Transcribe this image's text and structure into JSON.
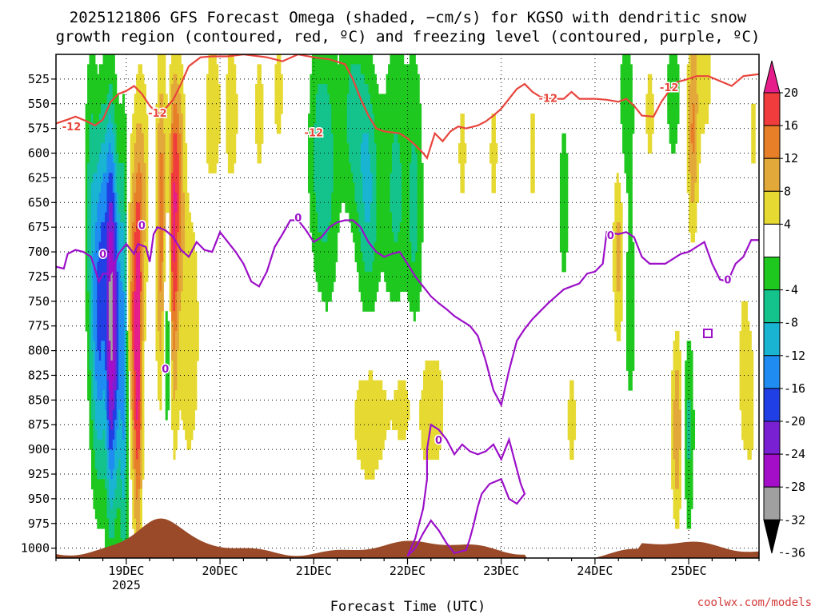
{
  "chart_data": {
    "type": "heatmap",
    "title_line1": "2025121806 GFS Forecast Omega (shaded, −cm/s) for KGSO with dendritic snow",
    "title_line2": "growth region (contoured, red, ºC) and freezing level (contoured, purple, ºC)",
    "xlabel": "Forecast Time (UTC)",
    "credit": "coolwx.com/models",
    "x_axis": {
      "unit": "hours since 2025-12-18 06Z",
      "range": [
        0,
        180
      ],
      "ticks": [
        {
          "label": "19DEC",
          "sub": "2025",
          "hour": 18
        },
        {
          "label": "20DEC",
          "hour": 42
        },
        {
          "label": "21DEC",
          "hour": 66
        },
        {
          "label": "22DEC",
          "hour": 90
        },
        {
          "label": "23DEC",
          "hour": 114
        },
        {
          "label": "24DEC",
          "hour": 138
        },
        {
          "label": "25DEC",
          "hour": 162
        }
      ]
    },
    "y_axis": {
      "unit": "hPa",
      "range": [
        500,
        1010
      ],
      "ticks": [
        525,
        550,
        575,
        600,
        625,
        650,
        675,
        700,
        725,
        750,
        775,
        800,
        825,
        850,
        875,
        900,
        925,
        950,
        975,
        1000
      ]
    },
    "colorbar": {
      "levels": [
        "20",
        "16",
        "12",
        "8",
        "4",
        "-4",
        "-8",
        "-12",
        "-16",
        "-20",
        "-24",
        "-28",
        "-32",
        "-36"
      ],
      "bins": [
        {
          "range": [
            16,
            20
          ],
          "color": "#f03c3c"
        },
        {
          "range": [
            12,
            16
          ],
          "color": "#e67f28"
        },
        {
          "range": [
            8,
            12
          ],
          "color": "#e3a83a"
        },
        {
          "range": [
            4,
            8
          ],
          "color": "#e6d932"
        },
        {
          "range": [
            -4,
            4
          ],
          "color": "#ffffff"
        },
        {
          "range": [
            -8,
            -4
          ],
          "color": "#1ec81e"
        },
        {
          "range": [
            -12,
            -8
          ],
          "color": "#14c38c"
        },
        {
          "range": [
            -16,
            -12
          ],
          "color": "#19b4d2"
        },
        {
          "range": [
            -20,
            -16
          ],
          "color": "#1e8cf0"
        },
        {
          "range": [
            -24,
            -20
          ],
          "color": "#2040e6"
        },
        {
          "range": [
            -28,
            -24
          ],
          "color": "#7820d2"
        },
        {
          "range": [
            -32,
            -28
          ],
          "color": "#a40ec8"
        },
        {
          "range": [
            -36,
            -32
          ],
          "color": "#a0a0a0"
        }
      ],
      "top_arrow_color": "#e61e8c",
      "bottom_arrow_color": "#000000"
    },
    "colors": {
      "dendritic_contour": "#e8453c",
      "freezing_contour": "#9c10c8",
      "terrain": "#9a4a28"
    },
    "contour_labels": [
      {
        "text": "-12",
        "hour": 4,
        "p": 573
      },
      {
        "text": "-12",
        "hour": 26,
        "p": 559
      },
      {
        "text": "-12",
        "hour": 66,
        "p": 579
      },
      {
        "text": "-12",
        "hour": 126,
        "p": 544
      },
      {
        "text": "-12",
        "hour": 157,
        "p": 533
      },
      {
        "text": "0",
        "hour": 22,
        "p": 673
      },
      {
        "text": "0",
        "hour": 12,
        "p": 702
      },
      {
        "text": "0",
        "hour": 62,
        "p": 665
      },
      {
        "text": "0",
        "hour": 28,
        "p": 818
      },
      {
        "text": "0",
        "hour": 98,
        "p": 890
      },
      {
        "text": "0",
        "hour": 142,
        "p": 683
      },
      {
        "text": "0",
        "hour": 172,
        "p": 728
      }
    ],
    "dendritic_contour": {
      "label": "-12",
      "points": [
        [
          0,
          570
        ],
        [
          3,
          566
        ],
        [
          5,
          563
        ],
        [
          8,
          568
        ],
        [
          10,
          572
        ],
        [
          12,
          566
        ],
        [
          14,
          548
        ],
        [
          16,
          540
        ],
        [
          18,
          537
        ],
        [
          20,
          532
        ],
        [
          22,
          540
        ],
        [
          24,
          552
        ],
        [
          26,
          560
        ],
        [
          28,
          555
        ],
        [
          30,
          546
        ],
        [
          32,
          530
        ],
        [
          34,
          512
        ],
        [
          37,
          503
        ],
        [
          40,
          502
        ],
        [
          44,
          502
        ],
        [
          48,
          500
        ],
        [
          54,
          503
        ],
        [
          58,
          507
        ],
        [
          62,
          500
        ],
        [
          66,
          503
        ],
        [
          70,
          505
        ],
        [
          74,
          510
        ],
        [
          76,
          525
        ],
        [
          78,
          545
        ],
        [
          80,
          562
        ],
        [
          82,
          575
        ],
        [
          84,
          578
        ],
        [
          88,
          580
        ],
        [
          90,
          585
        ],
        [
          92,
          592
        ],
        [
          94,
          600
        ],
        [
          95,
          605
        ],
        [
          97,
          580
        ],
        [
          99,
          588
        ],
        [
          101,
          578
        ],
        [
          103,
          573
        ],
        [
          105,
          575
        ],
        [
          108,
          572
        ],
        [
          110,
          568
        ],
        [
          112,
          562
        ],
        [
          114,
          555
        ],
        [
          116,
          545
        ],
        [
          118,
          535
        ],
        [
          120,
          530
        ],
        [
          122,
          538
        ],
        [
          124,
          543
        ],
        [
          127,
          545
        ],
        [
          130,
          545
        ],
        [
          132,
          538
        ],
        [
          134,
          545
        ],
        [
          138,
          545
        ],
        [
          141,
          546
        ],
        [
          144,
          548
        ],
        [
          146,
          545
        ],
        [
          148,
          552
        ],
        [
          150,
          562
        ],
        [
          153,
          563
        ],
        [
          155,
          548
        ],
        [
          157,
          537
        ],
        [
          159,
          528
        ],
        [
          161,
          526
        ],
        [
          164,
          522
        ],
        [
          167,
          522
        ],
        [
          170,
          527
        ],
        [
          173,
          532
        ],
        [
          176,
          522
        ],
        [
          180,
          520
        ]
      ]
    },
    "freezing_contour_upper": {
      "label": "0",
      "points": [
        [
          0,
          715
        ],
        [
          2,
          717
        ],
        [
          3,
          702
        ],
        [
          5,
          698
        ],
        [
          7,
          700
        ],
        [
          9,
          705
        ],
        [
          11,
          730
        ],
        [
          12,
          722
        ],
        [
          14,
          722
        ],
        [
          16,
          702
        ],
        [
          18,
          692
        ],
        [
          20,
          702
        ],
        [
          21,
          692
        ],
        [
          23,
          695
        ],
        [
          24,
          710
        ],
        [
          25,
          682
        ],
        [
          26,
          675
        ],
        [
          28,
          678
        ],
        [
          30,
          685
        ],
        [
          32,
          698
        ],
        [
          34,
          705
        ],
        [
          36,
          690
        ],
        [
          38,
          698
        ],
        [
          40,
          700
        ],
        [
          42,
          680
        ],
        [
          44,
          690
        ],
        [
          46,
          700
        ],
        [
          48,
          712
        ],
        [
          50,
          730
        ],
        [
          52,
          735
        ],
        [
          54,
          720
        ],
        [
          56,
          695
        ],
        [
          58,
          682
        ],
        [
          60,
          668
        ],
        [
          62,
          668
        ],
        [
          64,
          678
        ],
        [
          66,
          690
        ],
        [
          68,
          685
        ],
        [
          70,
          675
        ],
        [
          72,
          670
        ],
        [
          74,
          668
        ],
        [
          76,
          668
        ],
        [
          78,
          675
        ],
        [
          80,
          690
        ],
        [
          82,
          700
        ],
        [
          84,
          705
        ],
        [
          86,
          702
        ],
        [
          88,
          700
        ],
        [
          90,
          712
        ],
        [
          92,
          725
        ],
        [
          94,
          735
        ],
        [
          96,
          745
        ],
        [
          98,
          752
        ],
        [
          100,
          758
        ],
        [
          102,
          765
        ],
        [
          104,
          770
        ],
        [
          106,
          775
        ],
        [
          108,
          785
        ],
        [
          110,
          810
        ],
        [
          112,
          840
        ],
        [
          114,
          855
        ],
        [
          116,
          820
        ],
        [
          118,
          790
        ],
        [
          120,
          778
        ],
        [
          122,
          768
        ],
        [
          124,
          760
        ],
        [
          126,
          752
        ],
        [
          128,
          745
        ],
        [
          130,
          738
        ],
        [
          134,
          732
        ],
        [
          136,
          722
        ],
        [
          138,
          720
        ],
        [
          140,
          712
        ],
        [
          141,
          680
        ],
        [
          144,
          682
        ],
        [
          146,
          680
        ],
        [
          148,
          685
        ],
        [
          150,
          705
        ],
        [
          152,
          712
        ],
        [
          156,
          712
        ],
        [
          160,
          702
        ],
        [
          162,
          700
        ],
        [
          164,
          695
        ],
        [
          166,
          690
        ],
        [
          168,
          712
        ],
        [
          170,
          728
        ],
        [
          172,
          730
        ],
        [
          174,
          712
        ],
        [
          176,
          705
        ],
        [
          178,
          688
        ],
        [
          180,
          688
        ]
      ]
    },
    "freezing_contour_lower": {
      "label": "0",
      "points": [
        [
          90,
          1008
        ],
        [
          92,
          990
        ],
        [
          94,
          960
        ],
        [
          95,
          930
        ],
        [
          95,
          900
        ],
        [
          96,
          875
        ],
        [
          98,
          880
        ],
        [
          100,
          890
        ],
        [
          102,
          905
        ],
        [
          104,
          895
        ],
        [
          106,
          902
        ],
        [
          108,
          905
        ],
        [
          110,
          902
        ],
        [
          112,
          895
        ],
        [
          114,
          910
        ],
        [
          116,
          890
        ],
        [
          118,
          920
        ],
        [
          119,
          935
        ],
        [
          120,
          945
        ],
        [
          118,
          955
        ],
        [
          116,
          950
        ],
        [
          114,
          930
        ],
        [
          111,
          935
        ],
        [
          109,
          945
        ],
        [
          108,
          958
        ],
        [
          107,
          975
        ],
        [
          106,
          990
        ],
        [
          105,
          1002
        ],
        [
          102,
          1005
        ],
        [
          100,
          995
        ],
        [
          98,
          982
        ],
        [
          96,
          972
        ],
        [
          94,
          985
        ],
        [
          92,
          1000
        ],
        [
          90,
          1008
        ]
      ]
    }
  }
}
